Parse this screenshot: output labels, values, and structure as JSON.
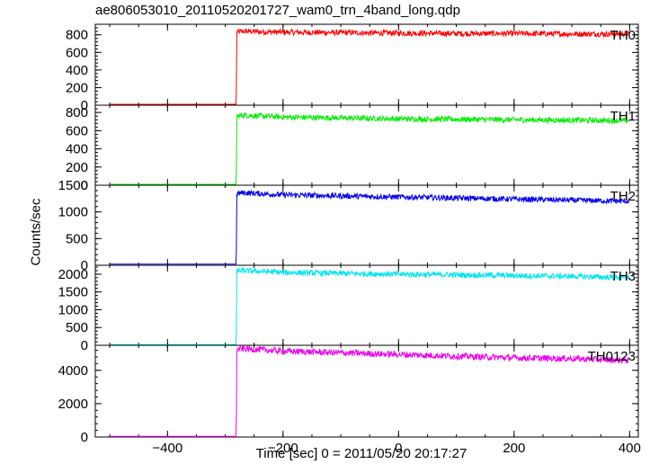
{
  "title": "ae806053010_20110520201727_wam0_trn_4band_long.qdp",
  "ylabel": "Counts/sec",
  "xlabel": "Time [sec] 0 = 2011/05/20 20:17:27",
  "chart_data": {
    "type": "line",
    "title": "ae806053010_20110520201727_wam0_trn_4band_long.qdp",
    "xlabel": "Time [sec] 0 = 2011/05/20 20:17:27",
    "ylabel": "Counts/sec",
    "xlim": [
      -525,
      415
    ],
    "xticks": [
      -400,
      -200,
      0,
      200,
      400
    ],
    "xtick_labels": [
      "−400",
      "−200",
      "0",
      "200",
      "400"
    ],
    "grid": false,
    "step_time": -280,
    "panels": [
      {
        "name": "TH0",
        "color": "#ff0000",
        "ylim": [
          0,
          920
        ],
        "yticks": [
          0,
          200,
          400,
          600,
          800
        ],
        "ytick_labels": [
          "0",
          "200",
          "400",
          "600",
          "800"
        ],
        "x": [
          -500,
          -281,
          -280,
          -270,
          -200,
          -100,
          0,
          100,
          200,
          300,
          400
        ],
        "y": [
          10,
          10,
          830,
          840,
          830,
          825,
          820,
          815,
          815,
          810,
          810
        ]
      },
      {
        "name": "TH1",
        "color": "#00ee00",
        "ylim": [
          0,
          880
        ],
        "yticks": [
          0,
          200,
          400,
          600,
          800
        ],
        "ytick_labels": [
          "0",
          "200",
          "400",
          "600",
          "800"
        ],
        "x": [
          -500,
          -281,
          -280,
          -270,
          -200,
          -100,
          0,
          100,
          200,
          300,
          400
        ],
        "y": [
          10,
          10,
          760,
          770,
          750,
          740,
          730,
          725,
          720,
          715,
          710
        ]
      },
      {
        "name": "TH2",
        "color": "#0000ee",
        "ylim": [
          0,
          1500
        ],
        "yticks": [
          0,
          500,
          1000,
          1500
        ],
        "ytick_labels": [
          "0",
          "500",
          "1000",
          "1500"
        ],
        "x": [
          -500,
          -281,
          -280,
          -270,
          -200,
          -100,
          0,
          100,
          200,
          300,
          400
        ],
        "y": [
          20,
          20,
          1340,
          1360,
          1320,
          1300,
          1280,
          1260,
          1240,
          1220,
          1200
        ]
      },
      {
        "name": "TH3",
        "color": "#00e5ee",
        "ylim": [
          0,
          2250
        ],
        "yticks": [
          0,
          500,
          1000,
          1500,
          2000
        ],
        "ytick_labels": [
          "0",
          "500",
          "1000",
          "1500",
          "2000"
        ],
        "x": [
          -500,
          -281,
          -280,
          -270,
          -200,
          -100,
          0,
          100,
          200,
          300,
          400
        ],
        "y": [
          20,
          20,
          2080,
          2100,
          2050,
          2020,
          2000,
          1980,
          1960,
          1940,
          1900
        ]
      },
      {
        "name": "TH0123",
        "color": "#ee00ee",
        "ylim": [
          0,
          5500
        ],
        "yticks": [
          0,
          2000,
          4000
        ],
        "ytick_labels": [
          "0",
          "2000",
          "4000"
        ],
        "x": [
          -500,
          -281,
          -280,
          -270,
          -200,
          -100,
          0,
          100,
          200,
          300,
          400
        ],
        "y": [
          40,
          40,
          5250,
          5300,
          5150,
          5050,
          4950,
          4850,
          4750,
          4700,
          4600
        ]
      }
    ]
  }
}
